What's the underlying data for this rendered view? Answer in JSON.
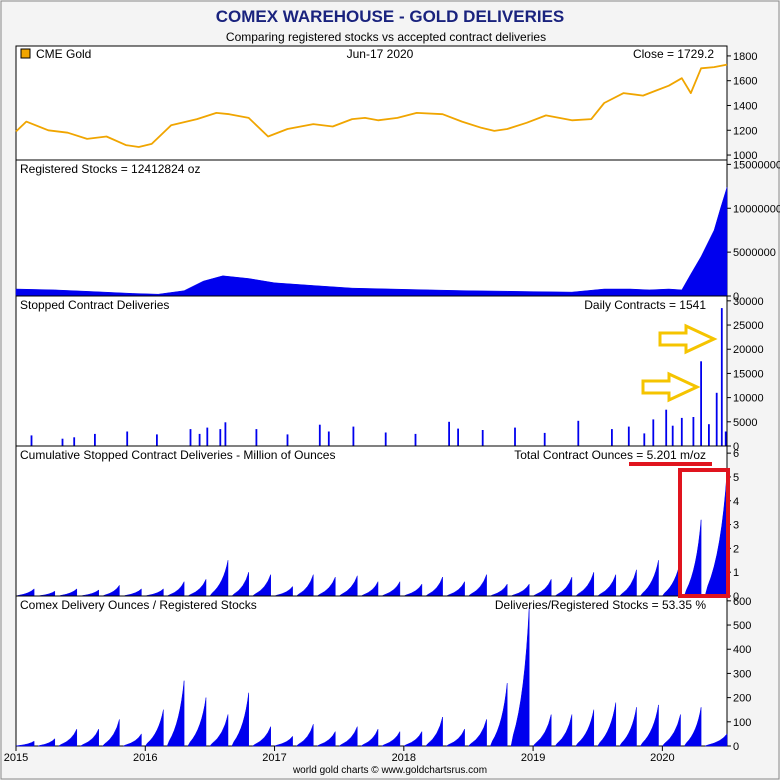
{
  "header": {
    "title": "COMEX WAREHOUSE - GOLD DELIVERIES",
    "subtitle": "Comparing registered stocks vs accepted contract deliveries"
  },
  "footer": "world gold charts © www.goldchartsrus.com",
  "colors": {
    "title": "#1a237e",
    "gold": "#f0a500",
    "bars": "#0000ee",
    "highlight": "#e0141e",
    "arrow": "#f5c400",
    "panel_bg": "#ffffff",
    "page_bg": "#f4f4f4"
  },
  "x_axis": {
    "labels": [
      "2015",
      "2016",
      "2017",
      "2018",
      "2019",
      "2020"
    ],
    "range": [
      2015.0,
      2020.5
    ]
  },
  "chart_data": [
    {
      "type": "line",
      "id": "gold",
      "legend": "CME Gold",
      "date": "Jun-17  2020",
      "stat": "Close = 1729.2",
      "ylim": [
        960,
        1880
      ],
      "yticks": [
        1000,
        1200,
        1400,
        1600,
        1800
      ],
      "ytick_labels": [
        "1000",
        "1200",
        "1400",
        "1600",
        "1800"
      ],
      "x": [
        2015.0,
        2015.08,
        2015.25,
        2015.4,
        2015.55,
        2015.7,
        2015.85,
        2015.95,
        2016.05,
        2016.2,
        2016.4,
        2016.55,
        2016.65,
        2016.8,
        2016.95,
        2017.1,
        2017.3,
        2017.45,
        2017.6,
        2017.7,
        2017.8,
        2017.95,
        2018.1,
        2018.3,
        2018.45,
        2018.6,
        2018.7,
        2018.8,
        2018.95,
        2019.1,
        2019.3,
        2019.45,
        2019.55,
        2019.7,
        2019.85,
        2019.95,
        2020.05,
        2020.15,
        2020.22,
        2020.3,
        2020.4,
        2020.5
      ],
      "values": [
        1190,
        1270,
        1200,
        1180,
        1130,
        1150,
        1080,
        1065,
        1090,
        1240,
        1290,
        1340,
        1330,
        1300,
        1150,
        1210,
        1250,
        1230,
        1290,
        1300,
        1280,
        1300,
        1340,
        1330,
        1270,
        1220,
        1195,
        1210,
        1260,
        1320,
        1280,
        1290,
        1420,
        1500,
        1480,
        1520,
        1560,
        1620,
        1500,
        1700,
        1710,
        1730
      ]
    },
    {
      "type": "area",
      "id": "registered",
      "label": "Registered Stocks = 12412824 oz",
      "ylim": [
        0,
        15500000
      ],
      "yticks": [
        0,
        5000000,
        10000000,
        15000000
      ],
      "ytick_labels": [
        "0",
        "5000000",
        "10000000",
        "15000000"
      ],
      "x": [
        2015.0,
        2015.3,
        2015.6,
        2015.9,
        2016.1,
        2016.3,
        2016.45,
        2016.6,
        2016.8,
        2017.0,
        2017.3,
        2017.6,
        2017.9,
        2018.2,
        2018.5,
        2018.8,
        2019.0,
        2019.3,
        2019.55,
        2019.75,
        2019.9,
        2020.05,
        2020.15,
        2020.22,
        2020.3,
        2020.4,
        2020.45,
        2020.5
      ],
      "values": [
        800000,
        700000,
        500000,
        300000,
        200000,
        600000,
        1700000,
        2300000,
        2000000,
        1500000,
        1200000,
        900000,
        800000,
        700000,
        600000,
        550000,
        500000,
        450000,
        800000,
        800000,
        700000,
        800000,
        700000,
        2500000,
        4500000,
        7500000,
        10000000,
        12400000
      ]
    },
    {
      "type": "bar",
      "id": "stopped",
      "label": "Stopped Contract Deliveries",
      "stat": "Daily Contracts = 1541",
      "ylim": [
        0,
        31000
      ],
      "yticks": [
        0,
        5000,
        10000,
        15000,
        20000,
        25000,
        30000
      ],
      "ytick_labels": [
        "0",
        "5000",
        "10000",
        "15000",
        "20000",
        "25000",
        "30000"
      ],
      "x": [
        2015.12,
        2015.36,
        2015.45,
        2015.61,
        2015.86,
        2016.09,
        2016.35,
        2016.42,
        2016.48,
        2016.58,
        2016.62,
        2016.86,
        2017.1,
        2017.35,
        2017.42,
        2017.61,
        2017.86,
        2018.09,
        2018.35,
        2018.42,
        2018.61,
        2018.86,
        2019.09,
        2019.35,
        2019.61,
        2019.74,
        2019.86,
        2019.93,
        2020.03,
        2020.08,
        2020.15,
        2020.24,
        2020.3,
        2020.36,
        2020.42,
        2020.46,
        2020.49
      ],
      "values": [
        2200,
        1500,
        1800,
        2500,
        3000,
        2400,
        3500,
        2500,
        3800,
        3500,
        4900,
        3500,
        2400,
        4400,
        3000,
        4000,
        2800,
        2500,
        5000,
        3600,
        3300,
        3800,
        2700,
        5200,
        3500,
        4000,
        2600,
        5500,
        7500,
        4200,
        5800,
        6000,
        17500,
        4500,
        11000,
        28500,
        3000
      ]
    },
    {
      "type": "area",
      "id": "cumulative",
      "label": "Cumulative Stopped Contract Deliveries - Million of Ounces",
      "stat": "Total Contract Ounces = 5.201 m/oz",
      "ylim": [
        0,
        6.3
      ],
      "yticks": [
        0,
        1,
        2,
        3,
        4,
        5,
        6
      ],
      "ytick_labels": [
        "0",
        "1",
        "2",
        "3",
        "4",
        "5",
        "6"
      ],
      "starts": [
        2015.0,
        2015.17,
        2015.33,
        2015.5,
        2015.67,
        2015.83,
        2016.0,
        2016.17,
        2016.33,
        2016.5,
        2016.67,
        2016.83,
        2017.0,
        2017.17,
        2017.33,
        2017.5,
        2017.67,
        2017.83,
        2018.0,
        2018.17,
        2018.33,
        2018.5,
        2018.67,
        2018.83,
        2019.0,
        2019.17,
        2019.33,
        2019.5,
        2019.67,
        2019.83,
        2020.0,
        2020.17,
        2020.33
      ],
      "ends": [
        2015.14,
        2015.3,
        2015.47,
        2015.64,
        2015.8,
        2015.97,
        2016.14,
        2016.3,
        2016.47,
        2016.64,
        2016.8,
        2016.97,
        2017.14,
        2017.3,
        2017.47,
        2017.64,
        2017.8,
        2017.97,
        2018.14,
        2018.3,
        2018.47,
        2018.64,
        2018.8,
        2018.97,
        2019.14,
        2019.3,
        2019.47,
        2019.64,
        2019.8,
        2019.97,
        2020.14,
        2020.3,
        2020.5
      ],
      "peaks": [
        0.3,
        0.2,
        0.3,
        0.25,
        0.45,
        0.3,
        0.3,
        0.6,
        0.7,
        1.5,
        1.0,
        0.9,
        0.4,
        0.9,
        0.8,
        0.85,
        0.6,
        0.6,
        0.5,
        0.8,
        0.6,
        0.9,
        0.5,
        0.5,
        0.7,
        0.8,
        1.0,
        0.9,
        1.1,
        1.5,
        1.5,
        3.2,
        5.2
      ]
    },
    {
      "type": "area",
      "id": "ratio",
      "label": "Comex Delivery Ounces / Registered Stocks",
      "stat": "Deliveries/Registered Stocks = 53.35 %",
      "ylim": [
        0,
        620
      ],
      "yticks": [
        0,
        100,
        200,
        300,
        400,
        500,
        600
      ],
      "ytick_labels": [
        "0",
        "100",
        "200",
        "300",
        "400",
        "500",
        "600"
      ],
      "starts": [
        2015.0,
        2015.17,
        2015.33,
        2015.5,
        2015.67,
        2015.83,
        2016.0,
        2016.17,
        2016.33,
        2016.5,
        2016.67,
        2016.83,
        2017.0,
        2017.17,
        2017.33,
        2017.5,
        2017.67,
        2017.83,
        2018.0,
        2018.17,
        2018.33,
        2018.5,
        2018.67,
        2018.83,
        2019.0,
        2019.17,
        2019.33,
        2019.5,
        2019.67,
        2019.83,
        2020.0,
        2020.17,
        2020.33
      ],
      "ends": [
        2015.14,
        2015.3,
        2015.47,
        2015.64,
        2015.8,
        2015.97,
        2016.14,
        2016.3,
        2016.47,
        2016.64,
        2016.8,
        2016.97,
        2017.14,
        2017.3,
        2017.47,
        2017.64,
        2017.8,
        2017.97,
        2018.14,
        2018.3,
        2018.47,
        2018.64,
        2018.8,
        2018.97,
        2019.14,
        2019.3,
        2019.47,
        2019.64,
        2019.8,
        2019.97,
        2020.14,
        2020.3,
        2020.5
      ],
      "peaks": [
        20,
        30,
        70,
        70,
        110,
        50,
        150,
        270,
        200,
        130,
        220,
        80,
        40,
        90,
        60,
        80,
        70,
        60,
        60,
        120,
        70,
        110,
        260,
        575,
        130,
        130,
        150,
        180,
        160,
        170,
        130,
        160,
        50
      ]
    }
  ]
}
